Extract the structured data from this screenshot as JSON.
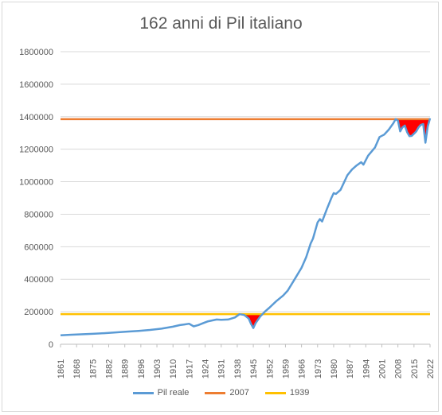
{
  "chart_data": {
    "type": "line",
    "title": "162 anni di Pil italiano",
    "xlabel": "",
    "ylabel": "",
    "xlim": [
      1861,
      2022
    ],
    "ylim": [
      0,
      1800000
    ],
    "y_ticks": [
      "0",
      "200000",
      "400000",
      "600000",
      "800000",
      "1000000",
      "1200000",
      "1400000",
      "1600000",
      "1800000"
    ],
    "x_tick_labels": [
      "1861",
      "1868",
      "1875",
      "1882",
      "1889",
      "1896",
      "1903",
      "1910",
      "1917",
      "1924",
      "1931",
      "1938",
      "1945",
      "1952",
      "1959",
      "1966",
      "1973",
      "1980",
      "1987",
      "1994",
      "2001",
      "2008",
      "2015",
      "2022"
    ],
    "grid": "horizontal",
    "legend_position": "bottom",
    "series": [
      {
        "name": "Pil reale",
        "color": "#5b9bd5",
        "points": [
          [
            1861,
            55000
          ],
          [
            1865,
            58000
          ],
          [
            1870,
            61000
          ],
          [
            1875,
            64000
          ],
          [
            1880,
            68000
          ],
          [
            1885,
            73000
          ],
          [
            1890,
            78000
          ],
          [
            1895,
            82000
          ],
          [
            1900,
            88000
          ],
          [
            1905,
            96000
          ],
          [
            1910,
            108000
          ],
          [
            1913,
            118000
          ],
          [
            1915,
            122000
          ],
          [
            1917,
            126000
          ],
          [
            1919,
            110000
          ],
          [
            1921,
            118000
          ],
          [
            1925,
            140000
          ],
          [
            1929,
            152000
          ],
          [
            1931,
            150000
          ],
          [
            1934,
            152000
          ],
          [
            1937,
            165000
          ],
          [
            1939,
            185000
          ],
          [
            1941,
            180000
          ],
          [
            1943,
            158000
          ],
          [
            1944,
            125000
          ],
          [
            1945,
            100000
          ],
          [
            1946,
            130000
          ],
          [
            1948,
            170000
          ],
          [
            1950,
            200000
          ],
          [
            1952,
            225000
          ],
          [
            1955,
            265000
          ],
          [
            1958,
            300000
          ],
          [
            1960,
            330000
          ],
          [
            1963,
            400000
          ],
          [
            1966,
            470000
          ],
          [
            1968,
            535000
          ],
          [
            1970,
            620000
          ],
          [
            1971,
            650000
          ],
          [
            1973,
            750000
          ],
          [
            1974,
            770000
          ],
          [
            1975,
            755000
          ],
          [
            1977,
            830000
          ],
          [
            1979,
            900000
          ],
          [
            1980,
            930000
          ],
          [
            1981,
            925000
          ],
          [
            1983,
            950000
          ],
          [
            1986,
            1040000
          ],
          [
            1988,
            1075000
          ],
          [
            1990,
            1100000
          ],
          [
            1992,
            1120000
          ],
          [
            1993,
            1105000
          ],
          [
            1995,
            1160000
          ],
          [
            1998,
            1210000
          ],
          [
            2000,
            1275000
          ],
          [
            2002,
            1290000
          ],
          [
            2004,
            1320000
          ],
          [
            2006,
            1360000
          ],
          [
            2007,
            1385000
          ],
          [
            2008,
            1375000
          ],
          [
            2009,
            1310000
          ],
          [
            2010,
            1335000
          ],
          [
            2011,
            1345000
          ],
          [
            2012,
            1305000
          ],
          [
            2013,
            1280000
          ],
          [
            2014,
            1282000
          ],
          [
            2015,
            1295000
          ],
          [
            2016,
            1310000
          ],
          [
            2017,
            1335000
          ],
          [
            2018,
            1350000
          ],
          [
            2019,
            1355000
          ],
          [
            2020,
            1240000
          ],
          [
            2021,
            1340000
          ],
          [
            2022,
            1390000
          ]
        ]
      },
      {
        "name": "2007",
        "color": "#ed7d31",
        "y": 1385000
      },
      {
        "name": "1939",
        "color": "#ffc000",
        "y": 185000
      }
    ],
    "highlight_color": "#ff0000"
  }
}
